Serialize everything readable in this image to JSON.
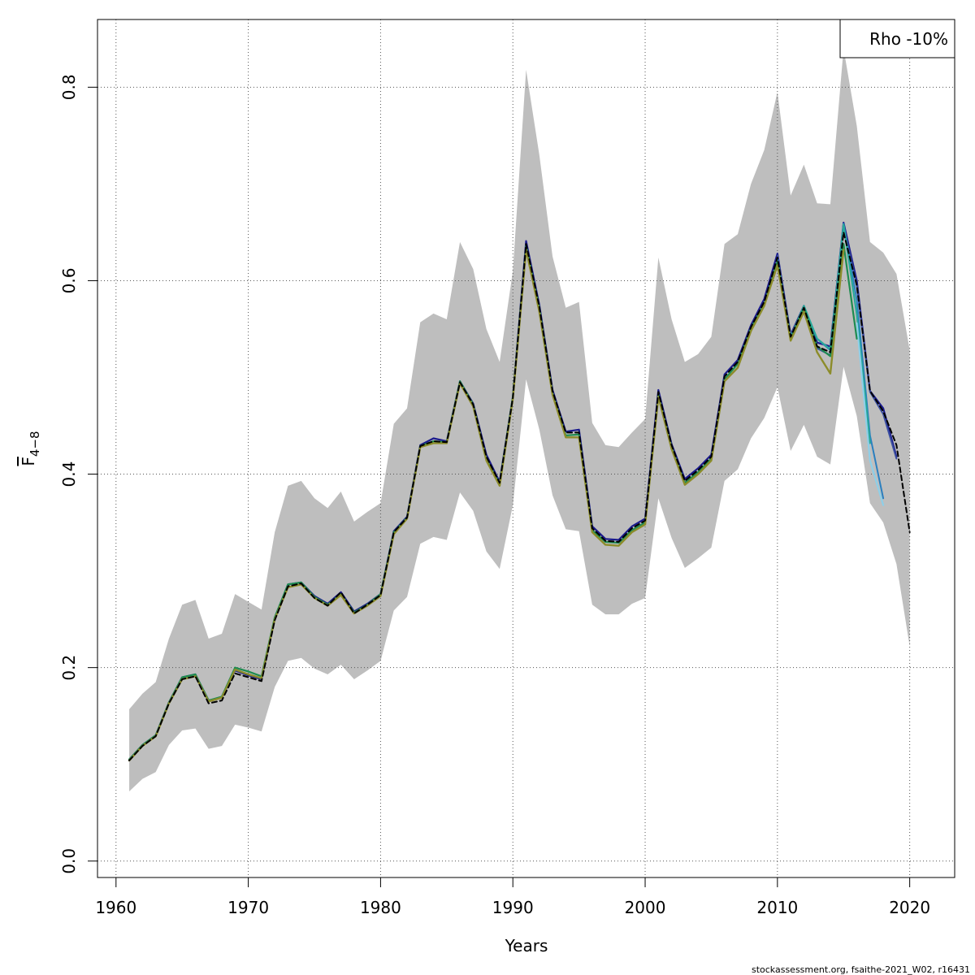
{
  "chart_data": {
    "type": "line",
    "xlabel": "Years",
    "ylabel_main": "F",
    "ylabel_sub": "4−8",
    "xlim": [
      1958.6,
      2023.4
    ],
    "ylim": [
      -0.017,
      0.87
    ],
    "x_ticks": [
      1960,
      1970,
      1980,
      1990,
      2000,
      2010,
      2020
    ],
    "y_ticks": [
      0.0,
      0.2,
      0.4,
      0.6,
      0.8
    ],
    "grid": true,
    "legend": {
      "position": "top-right",
      "label": "Rho -10%"
    },
    "footer": "stockassessment.org, fsaithe-2021_W02, r16431",
    "band": {
      "x": [
        1961,
        1962,
        1963,
        1964,
        1965,
        1966,
        1967,
        1968,
        1969,
        1970,
        1971,
        1972,
        1973,
        1974,
        1975,
        1976,
        1977,
        1978,
        1979,
        1980,
        1981,
        1982,
        1983,
        1984,
        1985,
        1986,
        1987,
        1988,
        1989,
        1990,
        1991,
        1992,
        1993,
        1994,
        1995,
        1996,
        1997,
        1998,
        1999,
        2000,
        2001,
        2002,
        2003,
        2004,
        2005,
        2006,
        2007,
        2008,
        2009,
        2010,
        2011,
        2012,
        2013,
        2014,
        2015,
        2016,
        2017,
        2018,
        2019,
        2020
      ],
      "upper": [
        0.157,
        0.173,
        0.185,
        0.23,
        0.265,
        0.27,
        0.23,
        0.235,
        0.276,
        0.268,
        0.26,
        0.34,
        0.388,
        0.393,
        0.375,
        0.365,
        0.382,
        0.351,
        0.361,
        0.37,
        0.452,
        0.468,
        0.557,
        0.566,
        0.56,
        0.64,
        0.612,
        0.55,
        0.516,
        0.61,
        0.818,
        0.73,
        0.625,
        0.572,
        0.578,
        0.453,
        0.43,
        0.428,
        0.443,
        0.457,
        0.624,
        0.56,
        0.516,
        0.524,
        0.542,
        0.638,
        0.648,
        0.7,
        0.735,
        0.795,
        0.688,
        0.72,
        0.68,
        0.679,
        0.84,
        0.76,
        0.64,
        0.629,
        0.607,
        0.528
      ],
      "lower": [
        0.072,
        0.085,
        0.092,
        0.12,
        0.135,
        0.137,
        0.116,
        0.119,
        0.141,
        0.138,
        0.134,
        0.18,
        0.207,
        0.21,
        0.199,
        0.193,
        0.203,
        0.188,
        0.197,
        0.207,
        0.259,
        0.273,
        0.328,
        0.335,
        0.332,
        0.381,
        0.362,
        0.32,
        0.302,
        0.368,
        0.498,
        0.446,
        0.378,
        0.343,
        0.341,
        0.265,
        0.255,
        0.255,
        0.266,
        0.272,
        0.375,
        0.334,
        0.303,
        0.313,
        0.324,
        0.393,
        0.405,
        0.437,
        0.458,
        0.49,
        0.424,
        0.451,
        0.418,
        0.41,
        0.511,
        0.46,
        0.37,
        0.35,
        0.307,
        0.222
      ]
    },
    "series": [
      {
        "color": "#1a1a8c",
        "width": 2.2,
        "dash": "",
        "x": [
          1961,
          1962,
          1963,
          1964,
          1965,
          1966,
          1967,
          1968,
          1969,
          1970,
          1971,
          1972,
          1973,
          1974,
          1975,
          1976,
          1977,
          1978,
          1979,
          1980,
          1981,
          1982,
          1983,
          1984,
          1985,
          1986,
          1987,
          1988,
          1989,
          1990,
          1991,
          1992,
          1993,
          1994,
          1995,
          1996,
          1997,
          1998,
          1999,
          2000,
          2001,
          2002,
          2003,
          2004,
          2005,
          2006,
          2007,
          2008,
          2009,
          2010,
          2011,
          2012,
          2013,
          2014,
          2015,
          2016,
          2017,
          2018,
          2019
        ],
        "y": [
          0.105,
          0.12,
          0.13,
          0.164,
          0.19,
          0.193,
          0.166,
          0.169,
          0.197,
          0.192,
          0.188,
          0.251,
          0.286,
          0.288,
          0.274,
          0.266,
          0.278,
          0.258,
          0.266,
          0.276,
          0.341,
          0.356,
          0.43,
          0.437,
          0.434,
          0.496,
          0.473,
          0.42,
          0.392,
          0.48,
          0.641,
          0.575,
          0.487,
          0.444,
          0.446,
          0.346,
          0.333,
          0.332,
          0.346,
          0.354,
          0.487,
          0.431,
          0.395,
          0.406,
          0.42,
          0.503,
          0.518,
          0.554,
          0.581,
          0.628,
          0.544,
          0.574,
          0.536,
          0.532,
          0.66,
          0.6,
          0.486,
          0.468,
          0.418
        ]
      },
      {
        "color": "#3b4fa0",
        "width": 2,
        "dash": "",
        "x": [
          2010,
          2011,
          2012,
          2013,
          2014,
          2015,
          2016,
          2017,
          2018,
          2019
        ],
        "y": [
          0.626,
          0.543,
          0.573,
          0.53,
          0.523,
          0.656,
          0.595,
          0.485,
          0.462,
          0.416
        ]
      },
      {
        "color": "#2a7fbf",
        "width": 2,
        "dash": "",
        "x": [
          2010,
          2011,
          2012,
          2013,
          2014,
          2015,
          2016,
          2017,
          2018
        ],
        "y": [
          0.622,
          0.542,
          0.572,
          0.54,
          0.528,
          0.659,
          0.58,
          0.44,
          0.375
        ]
      },
      {
        "color": "#28a89a",
        "width": 2.2,
        "dash": "",
        "x": [
          2010,
          2011,
          2012,
          2013,
          2014,
          2015,
          2016,
          2017
        ],
        "y": [
          0.62,
          0.541,
          0.574,
          0.54,
          0.529,
          0.658,
          0.565,
          0.432
        ]
      },
      {
        "color": "#8ecfe8",
        "width": 2.2,
        "dash": "",
        "x": [
          2016,
          2017,
          2018
        ],
        "y": [
          0.556,
          0.414,
          0.368
        ]
      },
      {
        "color": "#1e8c50",
        "width": 2.2,
        "dash": "",
        "x": [
          1961,
          1962,
          1963,
          1964,
          1965,
          1966,
          1967,
          1968,
          1969,
          1970,
          1971,
          1972,
          1973,
          1974,
          1975,
          1976,
          1977,
          1978,
          1979,
          1980,
          1981,
          1982,
          1983,
          1984,
          1985,
          1986,
          1987,
          1988,
          1989,
          1990,
          1991,
          1992,
          1993,
          1994,
          1995,
          1996,
          1997,
          1998,
          1999,
          2000,
          2001,
          2002,
          2003,
          2004,
          2005,
          2006,
          2007,
          2008,
          2009,
          2010,
          2011,
          2012,
          2013,
          2014,
          2015,
          2016
        ],
        "y": [
          0.105,
          0.12,
          0.13,
          0.164,
          0.19,
          0.193,
          0.166,
          0.17,
          0.2,
          0.196,
          0.191,
          0.252,
          0.286,
          0.288,
          0.273,
          0.265,
          0.276,
          0.257,
          0.265,
          0.276,
          0.34,
          0.355,
          0.429,
          0.434,
          0.433,
          0.496,
          0.472,
          0.415,
          0.39,
          0.48,
          0.636,
          0.572,
          0.484,
          0.44,
          0.441,
          0.342,
          0.33,
          0.329,
          0.342,
          0.35,
          0.482,
          0.428,
          0.391,
          0.402,
          0.416,
          0.498,
          0.514,
          0.551,
          0.576,
          0.62,
          0.54,
          0.572,
          0.532,
          0.522,
          0.638,
          0.54
        ]
      },
      {
        "color": "#8c8c2a",
        "width": 2.4,
        "dash": "",
        "x": [
          1961,
          1962,
          1963,
          1964,
          1965,
          1966,
          1967,
          1968,
          1969,
          1970,
          1971,
          1972,
          1973,
          1974,
          1975,
          1976,
          1977,
          1978,
          1979,
          1980,
          1981,
          1982,
          1983,
          1984,
          1985,
          1986,
          1987,
          1988,
          1989,
          1990,
          1991,
          1992,
          1993,
          1994,
          1995,
          1996,
          1997,
          1998,
          1999,
          2000,
          2001,
          2002,
          2003,
          2004,
          2005,
          2006,
          2007,
          2008,
          2009,
          2010,
          2011,
          2012,
          2013,
          2014,
          2015
        ],
        "y": [
          0.104,
          0.119,
          0.129,
          0.163,
          0.188,
          0.191,
          0.165,
          0.169,
          0.198,
          0.193,
          0.189,
          0.25,
          0.283,
          0.286,
          0.272,
          0.264,
          0.275,
          0.256,
          0.264,
          0.274,
          0.338,
          0.354,
          0.428,
          0.432,
          0.432,
          0.494,
          0.47,
          0.414,
          0.388,
          0.478,
          0.632,
          0.568,
          0.482,
          0.438,
          0.438,
          0.34,
          0.327,
          0.326,
          0.34,
          0.348,
          0.48,
          0.426,
          0.389,
          0.4,
          0.414,
          0.496,
          0.51,
          0.548,
          0.574,
          0.616,
          0.538,
          0.568,
          0.526,
          0.504,
          0.632
        ]
      },
      {
        "color": "#000000",
        "width": 2,
        "dash": "6,4",
        "x": [
          1961,
          1962,
          1963,
          1964,
          1965,
          1966,
          1967,
          1968,
          1969,
          1970,
          1971,
          1972,
          1973,
          1974,
          1975,
          1976,
          1977,
          1978,
          1979,
          1980,
          1981,
          1982,
          1983,
          1984,
          1985,
          1986,
          1987,
          1988,
          1989,
          1990,
          1991,
          1992,
          1993,
          1994,
          1995,
          1996,
          1997,
          1998,
          1999,
          2000,
          2001,
          2002,
          2003,
          2004,
          2005,
          2006,
          2007,
          2008,
          2009,
          2010,
          2011,
          2012,
          2013,
          2014,
          2015,
          2016,
          2017,
          2018,
          2019,
          2020
        ],
        "y": [
          0.104,
          0.119,
          0.129,
          0.163,
          0.188,
          0.191,
          0.163,
          0.166,
          0.194,
          0.19,
          0.186,
          0.249,
          0.284,
          0.287,
          0.272,
          0.264,
          0.278,
          0.256,
          0.265,
          0.275,
          0.34,
          0.355,
          0.429,
          0.434,
          0.433,
          0.495,
          0.472,
          0.418,
          0.391,
          0.479,
          0.638,
          0.573,
          0.486,
          0.443,
          0.443,
          0.344,
          0.331,
          0.33,
          0.344,
          0.352,
          0.485,
          0.43,
          0.393,
          0.404,
          0.418,
          0.501,
          0.516,
          0.552,
          0.578,
          0.624,
          0.542,
          0.572,
          0.532,
          0.526,
          0.65,
          0.595,
          0.486,
          0.465,
          0.43,
          0.34
        ]
      }
    ]
  }
}
